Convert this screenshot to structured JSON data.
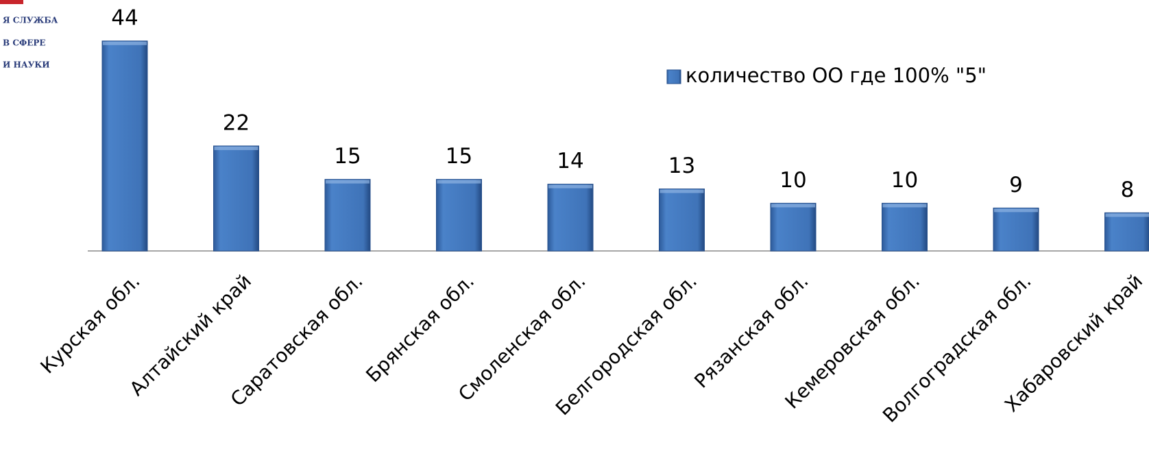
{
  "logo": {
    "lines": [
      "Я СЛУЖБА",
      "В СФЕРЕ",
      "И НАУКИ"
    ]
  },
  "chart_data": {
    "type": "bar",
    "categories": [
      "Курская обл.",
      "Алтайский край",
      "Саратовская обл.",
      "Брянская обл.",
      "Смоленская обл.",
      "Белгородская обл.",
      "Рязанская обл.",
      "Кемеровская обл.",
      "Волгоградская обл.",
      "Хабаровский край"
    ],
    "series": [
      {
        "name": "количество ОО где 100% \"5\"",
        "color": "#3f73b8",
        "values": [
          44,
          22,
          15,
          15,
          14,
          13,
          10,
          10,
          9,
          8
        ]
      }
    ],
    "legend": "upper right"
  }
}
